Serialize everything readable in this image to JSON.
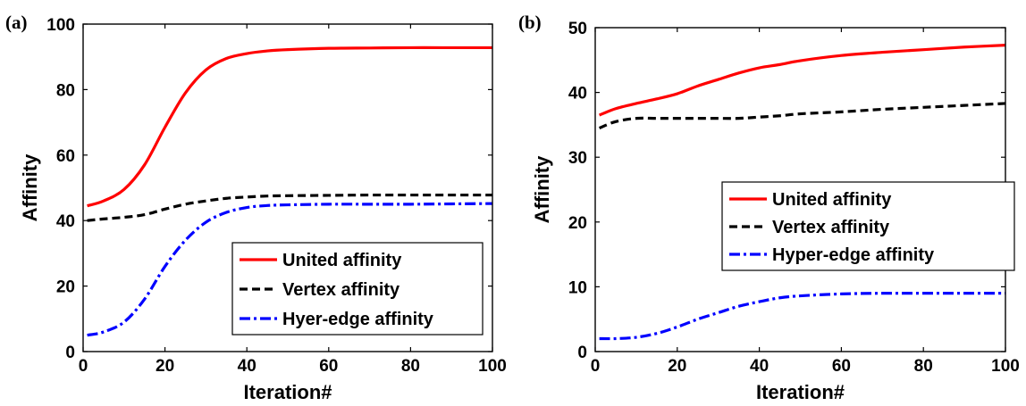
{
  "chart_data": [
    {
      "type": "line",
      "panel_label": "(a)",
      "xlabel": "Iteration#",
      "ylabel": "Affinity",
      "xlim": [
        0,
        100
      ],
      "ylim": [
        0,
        100
      ],
      "xticks": [
        0,
        20,
        40,
        60,
        80,
        100
      ],
      "yticks": [
        0,
        20,
        40,
        60,
        80,
        100
      ],
      "grid": false,
      "legend_position": "bottom-right",
      "x": [
        1,
        5,
        10,
        15,
        20,
        25,
        30,
        35,
        40,
        45,
        50,
        60,
        70,
        80,
        90,
        100
      ],
      "series": [
        {
          "name": "United affinity",
          "color": "#ff0000",
          "dash": "solid",
          "values": [
            44.5,
            46,
            49.5,
            57,
            68.5,
            79,
            86,
            89.5,
            91,
            91.8,
            92.2,
            92.6,
            92.7,
            92.8,
            92.8,
            92.8
          ]
        },
        {
          "name": "Vertex affinity",
          "color": "#000000",
          "dash": "dashed",
          "values": [
            40,
            40.5,
            41,
            41.8,
            43.5,
            45,
            46,
            46.8,
            47.2,
            47.5,
            47.6,
            47.7,
            47.8,
            47.8,
            47.8,
            47.8
          ]
        },
        {
          "name": "Hyer-edge affinity",
          "color": "#0000ff",
          "dash": "dashdot",
          "values": [
            5,
            6,
            9,
            16,
            26,
            34,
            39.5,
            42.5,
            44,
            44.6,
            44.8,
            45,
            45,
            45,
            45.1,
            45.2
          ]
        }
      ]
    },
    {
      "type": "line",
      "panel_label": "(b)",
      "xlabel": "Iteration#",
      "ylabel": "Affinity",
      "xlim": [
        0,
        100
      ],
      "ylim": [
        0,
        50
      ],
      "xticks": [
        0,
        20,
        40,
        60,
        80,
        100
      ],
      "yticks": [
        0,
        10,
        20,
        30,
        40,
        50
      ],
      "grid": false,
      "legend_position": "center-right",
      "x": [
        1,
        5,
        10,
        15,
        20,
        25,
        30,
        35,
        40,
        45,
        50,
        60,
        70,
        80,
        90,
        100
      ],
      "series": [
        {
          "name": "United affinity",
          "color": "#ff0000",
          "dash": "solid",
          "values": [
            36.5,
            37.5,
            38.3,
            39,
            39.8,
            41,
            42,
            43,
            43.8,
            44.3,
            44.9,
            45.7,
            46.2,
            46.6,
            47,
            47.3
          ]
        },
        {
          "name": "Vertex affinity",
          "color": "#000000",
          "dash": "dashed",
          "values": [
            34.5,
            35.5,
            36,
            36,
            36,
            36,
            36,
            36,
            36.2,
            36.4,
            36.7,
            37,
            37.4,
            37.7,
            38,
            38.3
          ]
        },
        {
          "name": "Hyper-edge affinity",
          "color": "#0000ff",
          "dash": "dashdot",
          "values": [
            2,
            2,
            2.2,
            2.8,
            3.8,
            5,
            6,
            7,
            7.7,
            8.3,
            8.6,
            8.9,
            9,
            9,
            9,
            9
          ]
        }
      ]
    }
  ]
}
